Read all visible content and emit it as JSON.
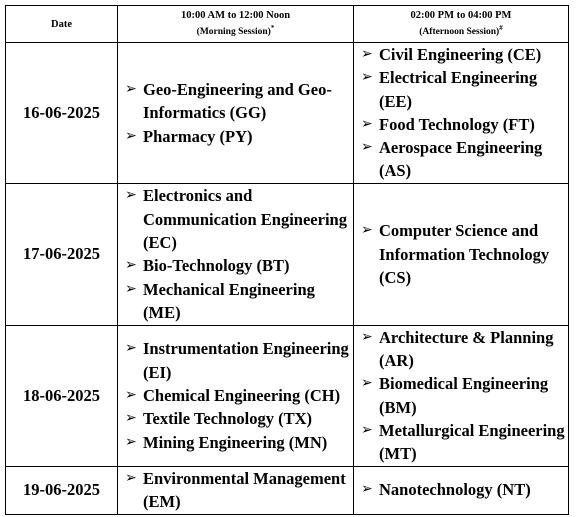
{
  "table": {
    "header": {
      "date": "Date",
      "morning": {
        "time": "10:00 AM to 12:00 Noon",
        "session": "(Morning Session)",
        "mark": "*"
      },
      "afternoon": {
        "time": "02:00 PM to 04:00 PM",
        "session": "(Afternoon Session)",
        "mark": "#"
      }
    },
    "rows": [
      {
        "date": "16-06-2025",
        "morning": [
          "Geo-Engineering and Geo-Informatics (GG)",
          "Pharmacy (PY)"
        ],
        "afternoon": [
          "Civil Engineering (CE)",
          "Electrical Engineering (EE)",
          "Food Technology (FT)",
          "Aerospace Engineering (AS)"
        ]
      },
      {
        "date": "17-06-2025",
        "morning": [
          "Electronics and Communication Engineering (EC)",
          "Bio-Technology (BT)",
          "Mechanical Engineering (ME)"
        ],
        "afternoon": [
          "Computer Science and Information Technology (CS)"
        ]
      },
      {
        "date": "18-06-2025",
        "morning": [
          "Instrumentation Engineering (EI)",
          "Chemical Engineering (CH)",
          "Textile Technology (TX)",
          "Mining Engineering (MN)"
        ],
        "afternoon": [
          "Architecture & Planning (AR)",
          "Biomedical Engineering (BM)",
          "Metallurgical Engineering (MT)"
        ]
      },
      {
        "date": "19-06-2025",
        "morning": [
          "Environmental Management (EM)"
        ],
        "afternoon": [
          "Nanotechnology (NT)"
        ]
      }
    ]
  }
}
